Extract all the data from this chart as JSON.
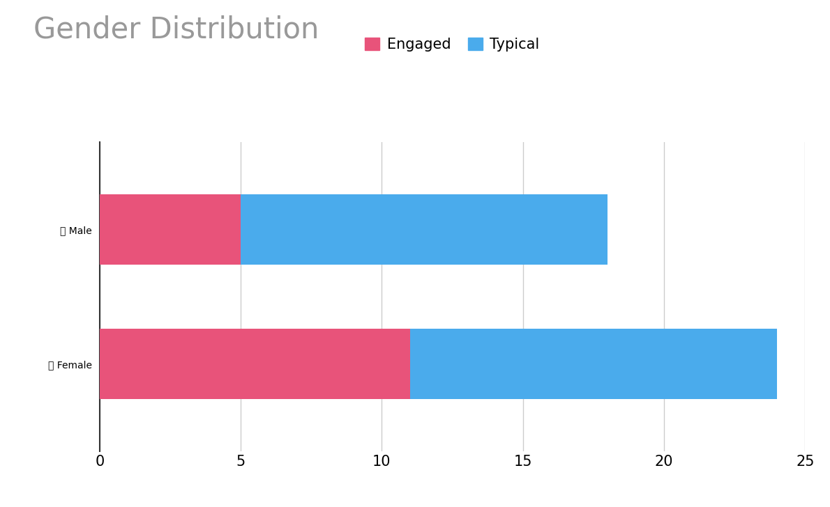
{
  "title": "Gender Distribution",
  "title_fontsize": 30,
  "title_color": "#999999",
  "categories": [
    "🧔 Male",
    "👩 Female"
  ],
  "engaged_values": [
    5,
    11
  ],
  "typical_values": [
    13,
    13
  ],
  "engaged_color": "#E8537A",
  "typical_color": "#4AABEC",
  "legend_labels": [
    "Engaged",
    "Typical"
  ],
  "legend_fontsize": 15,
  "xlim": [
    0,
    25
  ],
  "xticks": [
    0,
    5,
    10,
    15,
    20,
    25
  ],
  "tick_fontsize": 15,
  "bar_height": 0.52,
  "background_color": "#ffffff",
  "grid_color": "#cccccc",
  "ytick_fontsize": 19
}
